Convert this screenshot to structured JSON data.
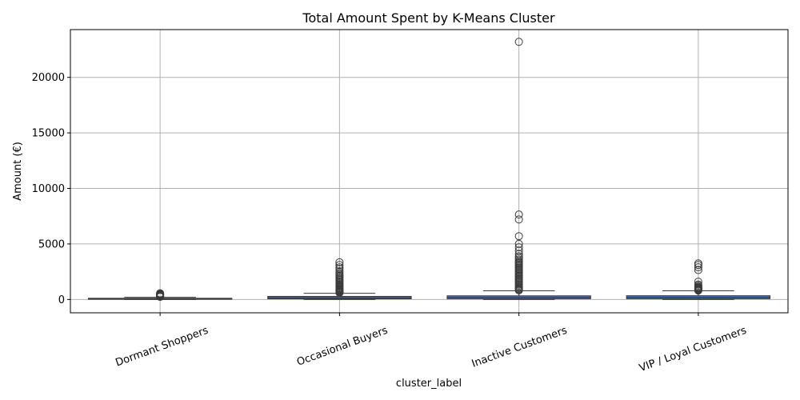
{
  "chart_data": {
    "type": "box",
    "title": "Total Amount Spent by K-Means Cluster",
    "xlabel": "cluster_label",
    "ylabel": "Amount (€)",
    "ylim": [
      -1200,
      24300
    ],
    "yticks": [
      0,
      5000,
      10000,
      15000,
      20000
    ],
    "grid": true,
    "box_color": "#4c72b0",
    "box_edge_color": "#3a3a3a",
    "categories": [
      "Dormant Shoppers",
      "Occasional Buyers",
      "Inactive Customers",
      "VIP / Loyal Customers"
    ],
    "boxes": [
      {
        "category": "Dormant Shoppers",
        "whisker_low": 0,
        "q1": 15,
        "median": 45,
        "q3": 110,
        "whisker_high": 200,
        "outliers": [
          230,
          260,
          290,
          320,
          350,
          380,
          410,
          440,
          470,
          500,
          530,
          560
        ]
      },
      {
        "category": "Occasional Buyers",
        "whisker_low": 0,
        "q1": 60,
        "median": 150,
        "q3": 280,
        "whisker_high": 560,
        "outliers": [
          600,
          650,
          700,
          760,
          820,
          880,
          950,
          1020,
          1100,
          1180,
          1260,
          1350,
          1450,
          1550,
          1650,
          1750,
          1850,
          1950,
          2050,
          2150,
          2250,
          2400,
          2550,
          2750,
          2900,
          3100,
          3350
        ]
      },
      {
        "category": "Inactive Customers",
        "whisker_low": 0,
        "q1": 70,
        "median": 170,
        "q3": 330,
        "whisker_high": 780,
        "outliers": [
          820,
          900,
          980,
          1060,
          1150,
          1250,
          1350,
          1450,
          1550,
          1650,
          1750,
          1850,
          1950,
          2050,
          2150,
          2250,
          2350,
          2450,
          2550,
          2650,
          2750,
          2850,
          2950,
          3050,
          3150,
          3250,
          3350,
          3450,
          3600,
          3750,
          3900,
          4100,
          4400,
          4700,
          5000,
          5700,
          7200,
          7650,
          23200
        ]
      },
      {
        "category": "VIP / Loyal Customers",
        "whisker_low": 0,
        "q1": 70,
        "median": 180,
        "q3": 340,
        "whisker_high": 780,
        "outliers": [
          800,
          850,
          900,
          950,
          1000,
          1050,
          1100,
          1150,
          1250,
          1350,
          1600,
          2650,
          2900,
          3100,
          3250
        ]
      }
    ]
  }
}
